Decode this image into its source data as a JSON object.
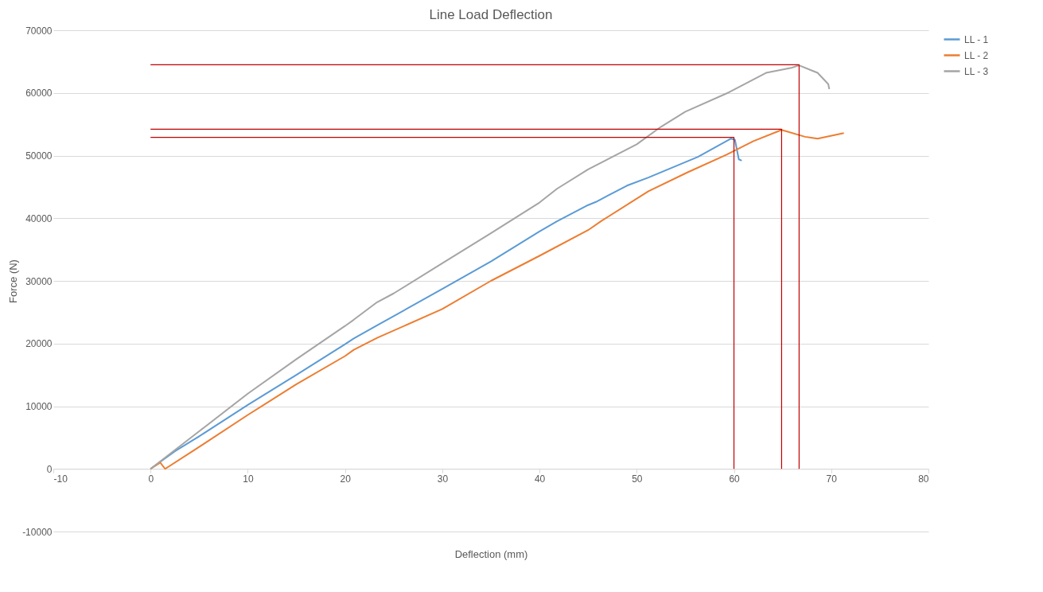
{
  "chart_data": {
    "type": "line",
    "title": "Line Load Deflection",
    "xlabel": "Deflection (mm)",
    "ylabel": "Force (N)",
    "xlim": [
      -10,
      80
    ],
    "xticks": [
      -10,
      0,
      10,
      20,
      30,
      40,
      50,
      60,
      70,
      80
    ],
    "ylim": [
      -10000,
      70000
    ],
    "yticks": [
      -10000,
      0,
      10000,
      20000,
      30000,
      40000,
      50000,
      60000,
      70000
    ],
    "grid": "y",
    "legend": "right",
    "line_style": "solid",
    "marker": "none",
    "series": [
      {
        "name": "LL - 1",
        "color": "#5b9bd5",
        "x": [
          0,
          2.5,
          5,
          10,
          15,
          20,
          20.9,
          23.3,
          30,
          35,
          40,
          41.8,
          45,
          45.8,
          49,
          51.2,
          56.3,
          59.7,
          60.1,
          60.5,
          60.8
        ],
        "values": [
          0,
          2800,
          5200,
          10200,
          15000,
          19900,
          20800,
          22900,
          28700,
          33100,
          37900,
          39500,
          42100,
          42600,
          45200,
          46500,
          49800,
          52700,
          52500,
          49400,
          49200
        ]
      },
      {
        "name": "LL - 2",
        "color": "#ed7d31",
        "x": [
          0,
          1,
          1.5,
          4.5,
          5,
          10,
          15,
          20,
          20.9,
          23.3,
          30,
          35,
          40,
          45,
          46.4,
          51.2,
          55.2,
          59.2,
          62,
          64.9,
          67.3,
          68.6,
          71.3
        ],
        "values": [
          0,
          1000,
          0,
          3000,
          3500,
          8600,
          13500,
          18000,
          19000,
          20900,
          25500,
          30000,
          34000,
          38100,
          39600,
          44300,
          47300,
          50100,
          52300,
          54100,
          53000,
          52700,
          53600
        ]
      },
      {
        "name": "LL - 3",
        "color": "#a5a5a5",
        "x": [
          0,
          5,
          10,
          15,
          20,
          20.9,
          23.3,
          25,
          30,
          35,
          40,
          41.8,
          45,
          50,
          52.5,
          55,
          59.5,
          63.3,
          65.9,
          66.7,
          68.6,
          69.7,
          69.8
        ],
        "values": [
          0,
          6000,
          12000,
          17500,
          22800,
          23800,
          26600,
          28000,
          32800,
          37600,
          42500,
          44700,
          47800,
          51800,
          54600,
          57000,
          60100,
          63200,
          64000,
          64400,
          63200,
          61400,
          60600
        ]
      },
      {
        "color": "#c00000",
        "x": [
          0,
          60,
          60
        ],
        "values": [
          52900,
          52900,
          0
        ]
      },
      {
        "color": "#c00000",
        "x": [
          0,
          64.9,
          64.9
        ],
        "values": [
          54200,
          54200,
          0
        ]
      },
      {
        "color": "#c00000",
        "x": [
          0,
          66.7,
          66.7
        ],
        "values": [
          64500,
          64500,
          0
        ]
      }
    ]
  }
}
